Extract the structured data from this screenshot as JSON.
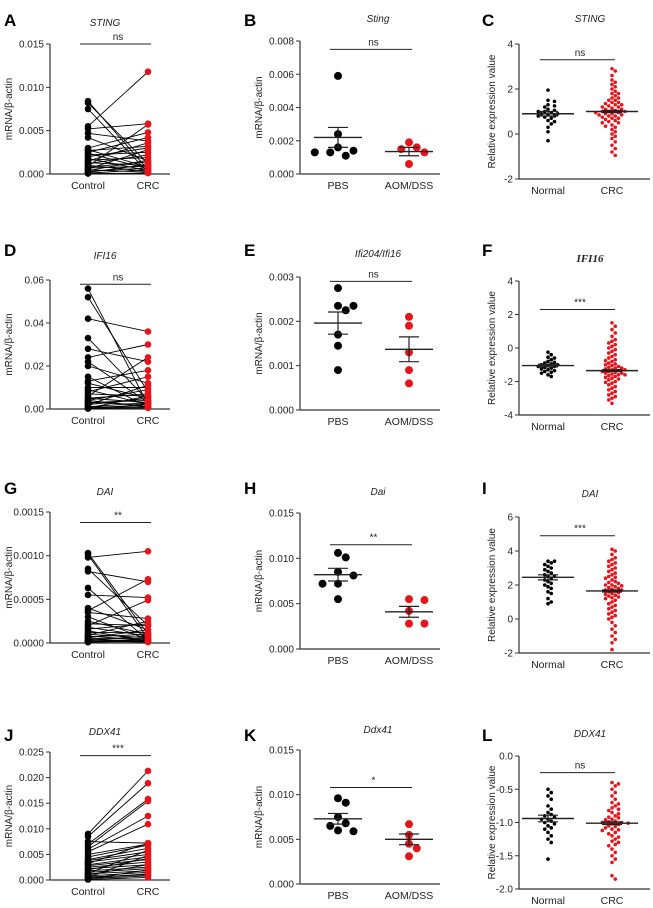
{
  "colors": {
    "control": "#000000",
    "disease": "#e8141b",
    "axis": "#333333"
  },
  "chart_data": [
    {
      "panel": "A",
      "type": "paired",
      "title": "STING",
      "ylabel": "mRNA/β-actin",
      "categories": [
        "Control",
        "CRC"
      ],
      "ylim": [
        0,
        0.015
      ],
      "yticks": [
        {
          "v": 0,
          "label": "0.000"
        },
        {
          "v": 0.005,
          "label": "0.005"
        },
        {
          "v": 0.01,
          "label": "0.010"
        },
        {
          "v": 0.015,
          "label": "0.015"
        }
      ],
      "significance": {
        "label": "ns",
        "level": 0.015
      },
      "group1": [
        0.0084,
        0.0082,
        0.0075,
        0.0055,
        0.0052,
        0.0047,
        0.0042,
        0.003,
        0.0028,
        0.0027,
        0.0025,
        0.0024,
        0.0022,
        0.002,
        0.0018,
        0.0016,
        0.0015,
        0.0013,
        0.0012,
        0.001,
        0.0009,
        0.0008,
        0.0007,
        0.0006,
        0.0005,
        0.0004,
        0.0003,
        0.0002,
        0.0001,
        5e-05
      ],
      "group2": [
        0.0005,
        0.0012,
        0.0002,
        0.0118,
        0.0058,
        0.0038,
        0.0015,
        0.0048,
        0.0008,
        0.0032,
        0.0042,
        0.0006,
        0.0025,
        0.003,
        0.0004,
        0.0019,
        0.0036,
        0.001,
        0.0022,
        0.0003,
        0.0057,
        0.0014,
        0.0009,
        0.0028,
        0.0002,
        0.0016,
        0.0007,
        0.0011,
        0.0005,
        0.0001
      ]
    },
    {
      "panel": "B",
      "type": "scatter",
      "title": "Sting",
      "ylabel": "mRNA/β-actin",
      "categories": [
        "PBS",
        "AOM/DSS"
      ],
      "ylim": [
        0,
        0.008
      ],
      "yticks": [
        {
          "v": 0,
          "label": "0.000"
        },
        {
          "v": 0.002,
          "label": "0.002"
        },
        {
          "v": 0.004,
          "label": "0.004"
        },
        {
          "v": 0.006,
          "label": "0.006"
        },
        {
          "v": 0.008,
          "label": "0.008"
        }
      ],
      "significance": {
        "label": "ns",
        "level": 0.0075
      },
      "group1": [
        0.0059,
        0.0024,
        0.0016,
        0.0014,
        0.0013,
        0.0013,
        0.0011
      ],
      "mean1": 0.0022,
      "sem1": 0.0006,
      "group2": [
        0.0019,
        0.0016,
        0.0015,
        0.0013,
        0.0006
      ],
      "mean2": 0.00135,
      "sem2": 0.00025
    },
    {
      "panel": "C",
      "type": "swarm",
      "title": "STING",
      "ylabel": "Relative expression value",
      "categories": [
        "Normal",
        "CRC"
      ],
      "ylim": [
        -2,
        4
      ],
      "yticks": [
        {
          "v": -2,
          "label": "-2"
        },
        {
          "v": 0,
          "label": "0"
        },
        {
          "v": 2,
          "label": "2"
        },
        {
          "v": 4,
          "label": "4"
        }
      ],
      "significance": {
        "label": "ns",
        "level": 3.3
      },
      "group1": [
        1.95,
        1.5,
        1.45,
        1.3,
        1.25,
        1.2,
        1.1,
        1.05,
        1.0,
        1.0,
        0.95,
        0.9,
        0.9,
        0.85,
        0.8,
        0.8,
        0.75,
        0.7,
        0.6,
        0.55,
        0.45,
        0.3,
        0.1,
        -0.3
      ],
      "mean1": 0.9,
      "sem1": 0.1,
      "group2": [
        2.9,
        2.8,
        2.6,
        2.4,
        2.3,
        2.2,
        2.1,
        2.0,
        1.9,
        1.8,
        1.8,
        1.7,
        1.6,
        1.6,
        1.5,
        1.5,
        1.4,
        1.4,
        1.35,
        1.3,
        1.3,
        1.25,
        1.2,
        1.2,
        1.15,
        1.1,
        1.1,
        1.05,
        1.0,
        1.0,
        1.0,
        0.95,
        0.95,
        0.9,
        0.9,
        0.85,
        0.85,
        0.8,
        0.8,
        0.75,
        0.7,
        0.7,
        0.65,
        0.6,
        0.55,
        0.5,
        0.5,
        0.4,
        0.35,
        0.3,
        0.2,
        0.1,
        0.0,
        -0.1,
        -0.2,
        -0.35,
        -0.5,
        -0.65,
        -0.8,
        -0.95
      ],
      "mean2": 1.0,
      "sem2": 0.05
    },
    {
      "panel": "D",
      "type": "paired",
      "title": "IFI16",
      "ylabel": "mRNA/β-actin",
      "categories": [
        "Control",
        "CRC"
      ],
      "ylim": [
        0,
        0.06
      ],
      "yticks": [
        {
          "v": 0,
          "label": "0.00"
        },
        {
          "v": 0.02,
          "label": "0.02"
        },
        {
          "v": 0.04,
          "label": "0.04"
        },
        {
          "v": 0.06,
          "label": "0.06"
        }
      ],
      "significance": {
        "label": "ns",
        "level": 0.058
      },
      "group1": [
        0.056,
        0.052,
        0.042,
        0.033,
        0.028,
        0.024,
        0.022,
        0.02,
        0.015,
        0.013,
        0.012,
        0.01,
        0.009,
        0.008,
        0.007,
        0.006,
        0.005,
        0.005,
        0.004,
        0.004,
        0.003,
        0.003,
        0.002,
        0.002,
        0.001,
        0.001,
        0.0005,
        0.0005,
        0.0003,
        0.0002
      ],
      "group2": [
        0.002,
        0.008,
        0.036,
        0.004,
        0.022,
        0.03,
        0.003,
        0.012,
        0.001,
        0.018,
        0.005,
        0.01,
        0.002,
        0.015,
        0.006,
        0.024,
        0.003,
        0.007,
        0.001,
        0.009,
        0.004,
        0.002,
        0.011,
        0.005,
        0.001,
        0.003,
        0.006,
        0.002,
        0.001,
        0.0005
      ]
    },
    {
      "panel": "E",
      "type": "scatter",
      "title": "Ifi204/Ifi16",
      "ylabel": "mRNA/β-actin",
      "categories": [
        "PBS",
        "AOM/DSS"
      ],
      "ylim": [
        0,
        0.003
      ],
      "yticks": [
        {
          "v": 0,
          "label": "0.000"
        },
        {
          "v": 0.001,
          "label": "0.001"
        },
        {
          "v": 0.002,
          "label": "0.002"
        },
        {
          "v": 0.003,
          "label": "0.003"
        }
      ],
      "significance": {
        "label": "ns",
        "level": 0.0029
      },
      "group1": [
        0.00275,
        0.00235,
        0.00235,
        0.00225,
        0.0017,
        0.00145,
        0.0009
      ],
      "mean1": 0.00196,
      "sem1": 0.00025,
      "group2": [
        0.0021,
        0.0019,
        0.0013,
        0.0009,
        0.0006
      ],
      "mean2": 0.00137,
      "sem2": 0.00028
    },
    {
      "panel": "F",
      "type": "swarm",
      "title": "IFI16",
      "title_style": "serif",
      "ylabel": "Relative expression value",
      "categories": [
        "Normal",
        "CRC"
      ],
      "ylim": [
        -4,
        4
      ],
      "yticks": [
        {
          "v": -4,
          "label": "-4"
        },
        {
          "v": -2,
          "label": "-2"
        },
        {
          "v": 0,
          "label": "0"
        },
        {
          "v": 2,
          "label": "2"
        },
        {
          "v": 4,
          "label": "4"
        }
      ],
      "significance": {
        "label": "***",
        "level": 2.3
      },
      "group1": [
        -0.25,
        -0.4,
        -0.55,
        -0.6,
        -0.7,
        -0.8,
        -0.85,
        -0.9,
        -0.95,
        -1.0,
        -1.0,
        -1.05,
        -1.1,
        -1.1,
        -1.15,
        -1.2,
        -1.25,
        -1.3,
        -1.35,
        -1.4,
        -1.45,
        -1.5,
        -1.6,
        -1.7
      ],
      "mean1": -1.05,
      "sem1": 0.08,
      "group2": [
        1.5,
        1.3,
        1.1,
        0.9,
        0.7,
        0.5,
        0.4,
        0.3,
        0.2,
        0.1,
        0.0,
        -0.1,
        -0.2,
        -0.3,
        -0.4,
        -0.5,
        -0.6,
        -0.7,
        -0.75,
        -0.8,
        -0.9,
        -0.95,
        -1.0,
        -1.05,
        -1.1,
        -1.15,
        -1.2,
        -1.2,
        -1.25,
        -1.3,
        -1.3,
        -1.35,
        -1.4,
        -1.4,
        -1.45,
        -1.5,
        -1.5,
        -1.55,
        -1.6,
        -1.6,
        -1.65,
        -1.7,
        -1.75,
        -1.8,
        -1.85,
        -1.9,
        -2.0,
        -2.05,
        -2.1,
        -2.2,
        -2.3,
        -2.4,
        -2.5,
        -2.6,
        -2.7,
        -2.8,
        -2.9,
        -3.0,
        -3.1,
        -3.3
      ],
      "mean2": -1.35,
      "sem2": 0.05
    },
    {
      "panel": "G",
      "type": "paired",
      "title": "DAI",
      "ylabel": "mRNA/β-actin",
      "categories": [
        "Control",
        "CRC"
      ],
      "ylim": [
        0,
        0.0015
      ],
      "yticks": [
        {
          "v": 0,
          "label": "0.0000"
        },
        {
          "v": 0.0005,
          "label": "0.0005"
        },
        {
          "v": 0.001,
          "label": "0.0010"
        },
        {
          "v": 0.0015,
          "label": "0.0015"
        }
      ],
      "significance": {
        "label": "**",
        "level": 0.00138
      },
      "group1": [
        0.00103,
        0.00101,
        0.00098,
        0.00085,
        0.00082,
        0.00063,
        0.00055,
        0.0004,
        0.00037,
        0.00035,
        0.0003,
        0.00025,
        0.00022,
        0.0002,
        0.00018,
        0.00016,
        0.00014,
        0.00012,
        0.0001,
        9e-05,
        8e-05,
        7e-05,
        6e-05,
        5e-05,
        4e-05,
        3e-05,
        2e-05,
        2e-05,
        1e-05,
        1e-05
      ],
      "group2": [
        0.0001,
        5e-05,
        0.00105,
        0.0002,
        0.0007,
        3e-05,
        0.00052,
        0.00015,
        0.00073,
        0.00028,
        4e-05,
        0.0001,
        0.0002,
        0.00049,
        8e-05,
        0.00022,
        2e-05,
        0.00012,
        6e-05,
        0.00025,
        3e-05,
        0.0001,
        0.00015,
        5e-05,
        2e-05,
        8e-05,
        4e-05,
        1e-05,
        3e-05,
        2e-05
      ]
    },
    {
      "panel": "H",
      "type": "scatter",
      "title": "Dai",
      "ylabel": "mRNA/β-actin",
      "categories": [
        "PBS",
        "AOM/DSS"
      ],
      "ylim": [
        0,
        0.015
      ],
      "yticks": [
        {
          "v": 0,
          "label": "0.000"
        },
        {
          "v": 0.005,
          "label": "0.005"
        },
        {
          "v": 0.01,
          "label": "0.010"
        },
        {
          "v": 0.015,
          "label": "0.015"
        }
      ],
      "significance": {
        "label": "**",
        "level": 0.0115
      },
      "group1": [
        0.0106,
        0.0101,
        0.0085,
        0.0081,
        0.0072,
        0.0072,
        0.0055
      ],
      "mean1": 0.0082,
      "sem1": 0.0007,
      "group2": [
        0.0055,
        0.0054,
        0.0042,
        0.0028,
        0.0028
      ],
      "mean2": 0.0041,
      "sem2": 0.0006
    },
    {
      "panel": "I",
      "type": "swarm",
      "title": "DAI",
      "ylabel": "Relative expression value",
      "categories": [
        "Normal",
        "CRC"
      ],
      "ylim": [
        -2,
        6
      ],
      "yticks": [
        {
          "v": -2,
          "label": "-2"
        },
        {
          "v": 0,
          "label": "0"
        },
        {
          "v": 2,
          "label": "2"
        },
        {
          "v": 4,
          "label": "4"
        },
        {
          "v": 6,
          "label": "6"
        }
      ],
      "significance": {
        "label": "***",
        "level": 4.9
      },
      "group1": [
        3.4,
        3.4,
        3.3,
        3.2,
        3.1,
        3.0,
        2.9,
        2.8,
        2.7,
        2.6,
        2.5,
        2.5,
        2.4,
        2.3,
        2.2,
        2.1,
        2.0,
        1.9,
        1.8,
        1.6,
        1.5,
        1.2,
        1.0,
        0.9
      ],
      "mean1": 2.45,
      "sem1": 0.15,
      "group2": [
        4.1,
        4.0,
        3.8,
        3.6,
        3.5,
        3.4,
        3.3,
        3.2,
        3.1,
        3.0,
        2.9,
        2.8,
        2.7,
        2.6,
        2.5,
        2.45,
        2.4,
        2.3,
        2.2,
        2.15,
        2.1,
        2.0,
        2.0,
        1.95,
        1.9,
        1.85,
        1.8,
        1.75,
        1.7,
        1.7,
        1.65,
        1.6,
        1.55,
        1.5,
        1.45,
        1.4,
        1.35,
        1.3,
        1.25,
        1.2,
        1.1,
        1.0,
        0.9,
        0.8,
        0.7,
        0.6,
        0.5,
        0.4,
        0.3,
        0.2,
        0.1,
        0.0,
        -0.2,
        -0.4,
        -0.6,
        -0.8,
        -1.0,
        -1.2,
        -1.4,
        -1.8
      ],
      "mean2": 1.65,
      "sem2": 0.06
    },
    {
      "panel": "J",
      "type": "paired",
      "title": "DDX41",
      "ylabel": "mRNA/β-actin",
      "categories": [
        "Control",
        "CRC"
      ],
      "ylim": [
        0,
        0.025
      ],
      "yticks": [
        {
          "v": 0,
          "label": "0.000"
        },
        {
          "v": 0.005,
          "label": "0.005"
        },
        {
          "v": 0.01,
          "label": "0.010"
        },
        {
          "v": 0.015,
          "label": "0.015"
        },
        {
          "v": 0.02,
          "label": "0.020"
        },
        {
          "v": 0.025,
          "label": "0.025"
        }
      ],
      "significance": {
        "label": "***",
        "level": 0.0243
      },
      "group1": [
        0.009,
        0.0085,
        0.0075,
        0.007,
        0.0065,
        0.006,
        0.0055,
        0.005,
        0.0045,
        0.004,
        0.0038,
        0.0035,
        0.0032,
        0.003,
        0.0028,
        0.0025,
        0.0022,
        0.002,
        0.0018,
        0.0015,
        0.0013,
        0.0012,
        0.001,
        0.0008,
        0.0006,
        0.0005,
        0.0004,
        0.0003,
        0.0002,
        0.0001
      ],
      "group2": [
        0.0213,
        0.0189,
        0.0072,
        0.0158,
        0.0154,
        0.0125,
        0.0109,
        0.007,
        0.0068,
        0.0062,
        0.0055,
        0.005,
        0.0072,
        0.0045,
        0.004,
        0.0035,
        0.003,
        0.0042,
        0.0025,
        0.0022,
        0.0058,
        0.0018,
        0.003,
        0.0015,
        0.001,
        0.0048,
        0.0012,
        0.0008,
        0.002,
        0.0005
      ]
    },
    {
      "panel": "K",
      "type": "scatter",
      "title": "Ddx41",
      "ylabel": "mRNA/β-actin",
      "categories": [
        "PBS",
        "AOM/DSS"
      ],
      "ylim": [
        0,
        0.015
      ],
      "yticks": [
        {
          "v": 0,
          "label": "0.000"
        },
        {
          "v": 0.005,
          "label": "0.005"
        },
        {
          "v": 0.01,
          "label": "0.010"
        },
        {
          "v": 0.015,
          "label": "0.015"
        }
      ],
      "significance": {
        "label": "*",
        "level": 0.0108
      },
      "group1": [
        0.0096,
        0.0091,
        0.0075,
        0.0068,
        0.0065,
        0.006,
        0.0059
      ],
      "mean1": 0.0073,
      "sem1": 0.0006,
      "group2": [
        0.0067,
        0.0055,
        0.0045,
        0.004,
        0.0031
      ],
      "mean2": 0.005,
      "sem2": 0.0006
    },
    {
      "panel": "L",
      "type": "swarm",
      "title": "DDX41",
      "ylabel": "Relative expression value",
      "categories": [
        "Normal",
        "CRC"
      ],
      "ylim": [
        -2,
        0
      ],
      "yticks": [
        {
          "v": -2,
          "label": "-2.0"
        },
        {
          "v": -1.5,
          "label": "-1.5"
        },
        {
          "v": -1,
          "label": "-1.0"
        },
        {
          "v": -0.5,
          "label": "-0.5"
        },
        {
          "v": 0,
          "label": "0.0"
        }
      ],
      "significance": {
        "label": "ns",
        "level": -0.25
      },
      "group1": [
        -0.5,
        -0.55,
        -0.6,
        -0.65,
        -0.75,
        -0.8,
        -0.85,
        -0.88,
        -0.9,
        -0.92,
        -0.95,
        -0.95,
        -0.98,
        -1.0,
        -1.02,
        -1.05,
        -1.08,
        -1.1,
        -1.15,
        -1.2,
        -1.25,
        -1.3,
        -1.55
      ],
      "mean1": -0.94,
      "sem1": 0.05,
      "group2": [
        -0.4,
        -0.42,
        -0.45,
        -0.5,
        -0.55,
        -0.6,
        -0.65,
        -0.7,
        -0.72,
        -0.75,
        -0.78,
        -0.8,
        -0.82,
        -0.85,
        -0.87,
        -0.9,
        -0.92,
        -0.93,
        -0.95,
        -0.96,
        -0.98,
        -0.99,
        -1.0,
        -1.0,
        -1.01,
        -1.02,
        -1.03,
        -1.05,
        -1.06,
        -1.08,
        -1.1,
        -1.11,
        -1.12,
        -1.15,
        -1.17,
        -1.2,
        -1.22,
        -1.25,
        -1.28,
        -1.3,
        -1.33,
        -1.35,
        -1.4,
        -1.45,
        -1.5,
        -1.55,
        -1.6,
        -1.8,
        -1.85
      ],
      "mean2": -1.01,
      "sem2": 0.02
    }
  ]
}
